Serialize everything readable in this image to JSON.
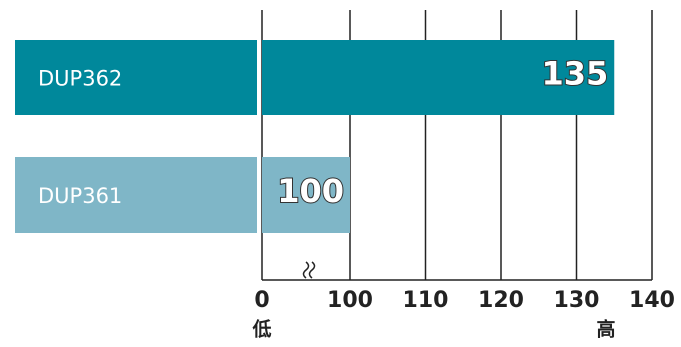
{
  "chart_data": {
    "type": "bar",
    "orientation": "horizontal",
    "categories": [
      "DUP362",
      "DUP361"
    ],
    "values": [
      135,
      100
    ],
    "colors": [
      "#00889b",
      "#7fb6c7"
    ],
    "xlim": [
      0,
      140
    ],
    "xticks": [
      0,
      100,
      110,
      120,
      130,
      140
    ],
    "axis_break": [
      0,
      100
    ],
    "grid": true,
    "low_label": "低",
    "high_label": "高"
  }
}
